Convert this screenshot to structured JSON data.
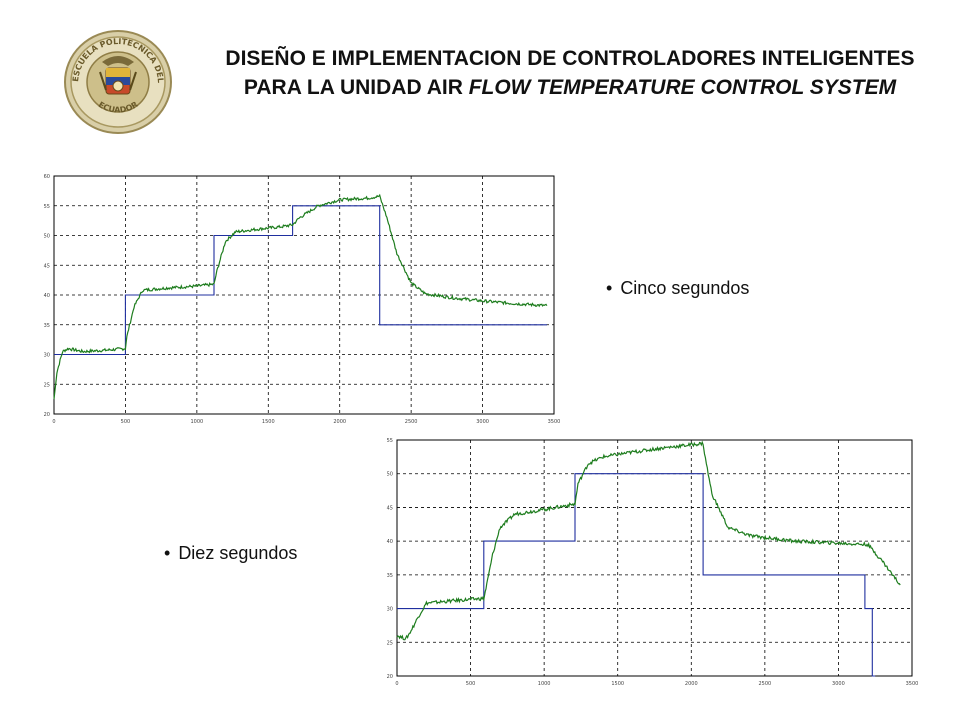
{
  "header": {
    "title_part1": "DISEÑO E IMPLEMENTACION DE CONTROLADORES INTELIGENTES PARA LA UNIDAD AIR ",
    "title_italic": "FLOW TEMPERATURE CONTROL SYSTEM",
    "logo": {
      "icon": "university-seal-icon",
      "ring_text": "ESCUELA POLITECNICA DEL EJERCITO",
      "bottom_text": "ECUADOR"
    }
  },
  "bullets": {
    "first": "Cinco segundos",
    "second": "Diez segundos"
  },
  "colors": {
    "reference": "#1f2f9f",
    "response": "#1e7d1e",
    "grid": "#000000"
  },
  "chart_data": [
    {
      "type": "line",
      "title": "",
      "xlabel": "",
      "ylabel": "",
      "xlim": [
        0,
        3500
      ],
      "ylim": [
        20,
        60
      ],
      "x_ticks": [
        "0",
        "500",
        "1000",
        "1500",
        "2000",
        "2500",
        "3000",
        "3500"
      ],
      "y_ticks": [
        "20",
        "25",
        "30",
        "35",
        "40",
        "45",
        "50",
        "55",
        "60"
      ],
      "grid": true,
      "series": [
        {
          "name": "",
          "style": "step",
          "x": [
            0,
            500,
            500,
            1120,
            1120,
            1670,
            1670,
            2280,
            2280,
            3450
          ],
          "y": [
            30,
            30,
            40,
            40,
            50,
            50,
            55,
            55,
            35,
            35
          ]
        },
        {
          "name": "",
          "style": "line",
          "x": [
            0,
            20,
            60,
            100,
            200,
            350,
            500,
            510,
            560,
            620,
            800,
            1000,
            1120,
            1140,
            1200,
            1270,
            1400,
            1600,
            1670,
            1720,
            1850,
            2000,
            2200,
            2280,
            2330,
            2400,
            2500,
            2600,
            2800,
            3000,
            3200,
            3450
          ],
          "y": [
            22.5,
            27,
            30.5,
            31,
            30.5,
            30.7,
            31,
            33,
            38,
            40.8,
            41.2,
            41.5,
            41.8,
            44,
            49,
            50.6,
            51,
            51.5,
            51.8,
            53,
            55,
            56,
            56.3,
            56.6,
            53,
            47,
            42,
            40.2,
            39.5,
            39,
            38.6,
            38.2
          ]
        }
      ]
    },
    {
      "type": "line",
      "title": "",
      "xlabel": "",
      "ylabel": "",
      "xlim": [
        0,
        3500
      ],
      "ylim": [
        20,
        55
      ],
      "x_ticks": [
        "0",
        "500",
        "1000",
        "1500",
        "2000",
        "2500",
        "3000",
        "3500"
      ],
      "y_ticks": [
        "20",
        "25",
        "30",
        "35",
        "40",
        "45",
        "50",
        "55"
      ],
      "grid": true,
      "series": [
        {
          "name": "",
          "style": "step",
          "x": [
            0,
            590,
            590,
            1210,
            1210,
            2080,
            2080,
            3180,
            3180,
            3230,
            3230,
            3250
          ],
          "y": [
            30,
            30,
            40,
            40,
            50,
            50,
            35,
            35,
            30,
            30,
            20,
            20
          ]
        },
        {
          "name": "",
          "style": "line",
          "x": [
            0,
            60,
            90,
            150,
            200,
            400,
            590,
            605,
            650,
            700,
            800,
            1000,
            1210,
            1230,
            1300,
            1400,
            1600,
            1800,
            2080,
            2090,
            2140,
            2250,
            2400,
            2700,
            3000,
            3200,
            3300,
            3420
          ],
          "y": [
            26,
            25.5,
            26.5,
            29,
            30.8,
            31.2,
            31.5,
            33,
            38,
            42,
            44,
            44.7,
            45.5,
            48.5,
            51.5,
            52.5,
            53.2,
            53.8,
            54.5,
            53,
            47,
            42,
            40.8,
            40,
            39.7,
            39.5,
            37,
            33.5
          ]
        }
      ]
    }
  ]
}
